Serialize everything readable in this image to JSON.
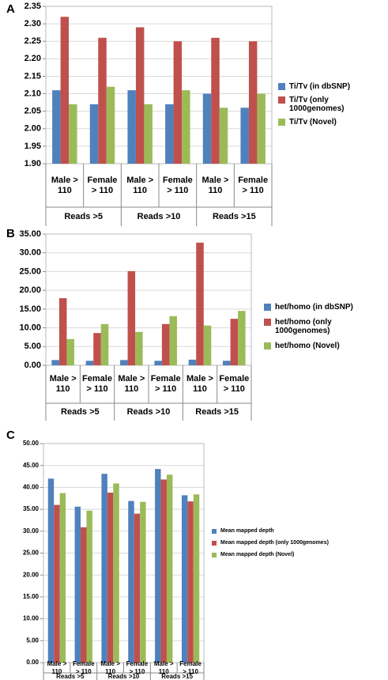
{
  "chart_data": [
    {
      "type": "bar",
      "panel": "A",
      "categories": [
        "Male > 110",
        "Female > 110",
        "Male > 110",
        "Female > 110",
        "Male > 110",
        "Female > 110"
      ],
      "groups": [
        "Reads >5",
        "Reads >10",
        "Reads >15"
      ],
      "series": [
        {
          "name": "Ti/Tv (in dbSNP)",
          "color": "#4f81bd",
          "values": [
            2.11,
            2.07,
            2.11,
            2.07,
            2.1,
            2.06
          ]
        },
        {
          "name": "Ti/Tv (only 1000genomes)",
          "color": "#c0504d",
          "values": [
            2.32,
            2.26,
            2.29,
            2.25,
            2.26,
            2.25
          ]
        },
        {
          "name": "Ti/Tv (Novel)",
          "color": "#9bbb59",
          "values": [
            2.07,
            2.12,
            2.07,
            2.11,
            2.06,
            2.1
          ]
        }
      ],
      "ylim": [
        1.9,
        2.35
      ],
      "yticks": [
        {
          "value": 1.9,
          "label": "1.90"
        },
        1.95,
        {
          "value": 2.0,
          "label": "2.00"
        },
        2.05,
        {
          "value": 2.1,
          "label": "2.10"
        },
        2.15,
        {
          "value": 2.2,
          "label": "2.20"
        },
        2.25,
        {
          "value": 2.3,
          "label": "2.30"
        },
        2.35
      ],
      "grid": true,
      "legend": "right"
    },
    {
      "type": "bar",
      "panel": "B",
      "categories": [
        "Male > 110",
        "Female > 110",
        "Male > 110",
        "Female > 110",
        "Male > 110",
        "Female > 110"
      ],
      "groups": [
        "Reads >5",
        "Reads >10",
        "Reads >15"
      ],
      "series": [
        {
          "name": "het/homo (in dbSNP)",
          "color": "#4f81bd",
          "values": [
            1.4,
            1.2,
            1.4,
            1.2,
            1.5,
            1.2
          ]
        },
        {
          "name": "het/homo (only 1000genomes)",
          "color": "#c0504d",
          "values": [
            17.9,
            8.6,
            25.1,
            11.0,
            32.7,
            12.4
          ]
        },
        {
          "name": "het/homo (Novel)",
          "color": "#9bbb59",
          "values": [
            7.0,
            11.0,
            8.9,
            13.1,
            10.6,
            14.5
          ]
        }
      ],
      "ylim": [
        0,
        35
      ],
      "yticks": [
        {
          "value": 0,
          "label": "0.00"
        },
        {
          "value": 5,
          "label": "5.00"
        },
        {
          "value": 10,
          "label": "10.00"
        },
        {
          "value": 15,
          "label": "15.00"
        },
        {
          "value": 20,
          "label": "20.00"
        },
        {
          "value": 25,
          "label": "25.00"
        },
        {
          "value": 30,
          "label": "30.00"
        },
        {
          "value": 35,
          "label": "35.00"
        }
      ],
      "grid": true,
      "legend": "right"
    },
    {
      "type": "bar",
      "panel": "C",
      "categories": [
        "Male > 110",
        "Female > 110",
        "Male > 110",
        "Female > 110",
        "Male > 110",
        "Female > 110"
      ],
      "groups": [
        "Reads >5",
        "Reads >10",
        "Reads >15"
      ],
      "series": [
        {
          "name": "Mean mapped depth",
          "color": "#4f81bd",
          "values": [
            42.0,
            35.6,
            43.1,
            36.9,
            44.2,
            38.2
          ]
        },
        {
          "name": "Mean mapped depth (only 1000genomes)",
          "color": "#c0504d",
          "values": [
            36.0,
            30.9,
            38.8,
            34.0,
            41.8,
            36.8
          ]
        },
        {
          "name": "Mean mapped depth (Novel)",
          "color": "#9bbb59",
          "values": [
            38.7,
            34.7,
            40.9,
            36.7,
            42.9,
            38.4
          ]
        }
      ],
      "ylim": [
        0,
        50
      ],
      "yticks": [
        {
          "value": 0,
          "label": "0.00"
        },
        {
          "value": 5,
          "label": "5.00"
        },
        {
          "value": 10,
          "label": "10.00"
        },
        {
          "value": 15,
          "label": "15.00"
        },
        {
          "value": 20,
          "label": "20.00"
        },
        {
          "value": 25,
          "label": "25.00"
        },
        {
          "value": 30,
          "label": "30.00"
        },
        {
          "value": 35,
          "label": "35.00"
        },
        {
          "value": 40,
          "label": "40.00"
        },
        {
          "value": 45,
          "label": "45.00"
        },
        {
          "value": 50,
          "label": "50.00"
        }
      ],
      "grid": true,
      "legend": "right"
    }
  ]
}
